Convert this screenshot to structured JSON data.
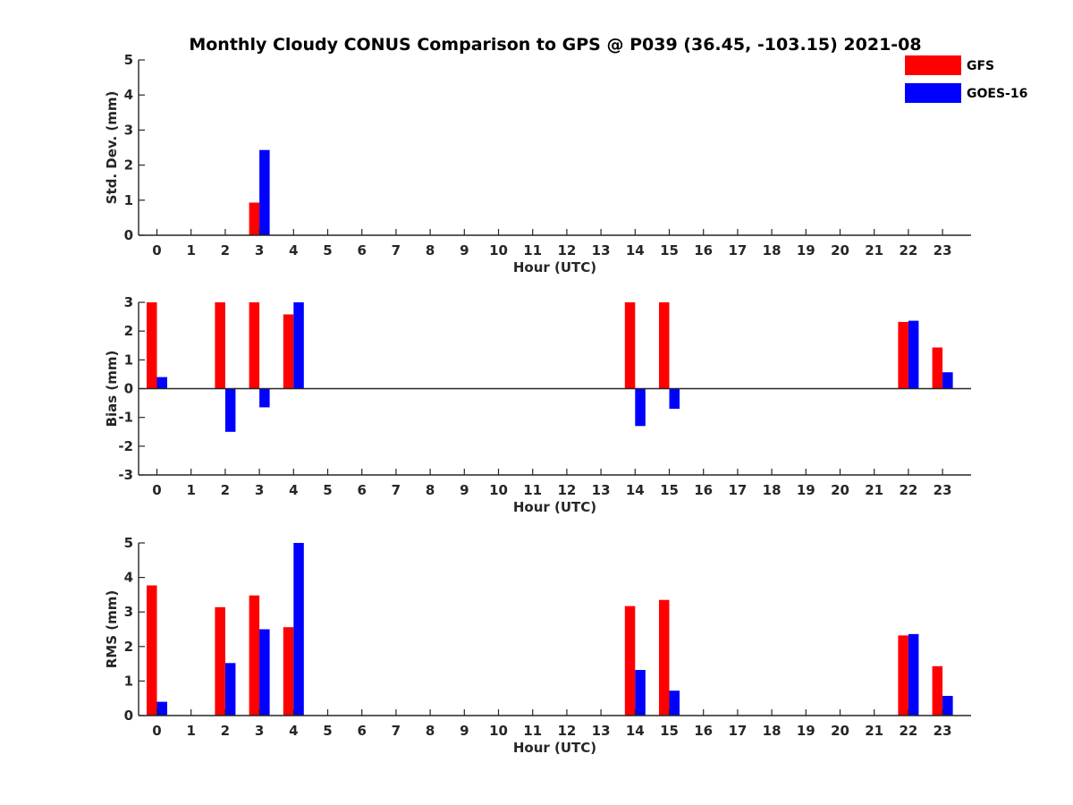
{
  "chart_data": {
    "type": "bar",
    "title": "Monthly Cloudy CONUS Comparison to GPS @ P039 (36.45, -103.15) 2021-08",
    "legend": {
      "placement": "top-right",
      "entries": [
        {
          "name": "GFS",
          "color": "#ff0000"
        },
        {
          "name": "GOES-16",
          "color": "#0000ff"
        }
      ]
    },
    "panels": [
      {
        "ylabel": "Std. Dev. (mm)",
        "xlabel": "Hour (UTC)",
        "ylim": [
          0,
          5
        ],
        "yticks": [
          0,
          1,
          2,
          3,
          4,
          5
        ],
        "categories": [
          "0",
          "1",
          "2",
          "3",
          "4",
          "5",
          "6",
          "7",
          "8",
          "9",
          "10",
          "11",
          "12",
          "13",
          "14",
          "15",
          "16",
          "17",
          "18",
          "19",
          "20",
          "21",
          "22",
          "23"
        ],
        "series": [
          {
            "name": "GFS",
            "values": [
              0,
              0,
              0,
              0.93,
              0,
              0,
              0,
              0,
              0,
              0,
              0,
              0,
              0,
              0,
              0,
              0,
              0,
              0,
              0,
              0,
              0,
              0,
              0,
              0
            ]
          },
          {
            "name": "GOES-16",
            "values": [
              0,
              0,
              0,
              2.43,
              0,
              0,
              0,
              0,
              0,
              0,
              0,
              0,
              0,
              0,
              0,
              0,
              0,
              0,
              0,
              0,
              0,
              0,
              0,
              0
            ]
          }
        ]
      },
      {
        "ylabel": "Bias (mm)",
        "xlabel": "Hour (UTC)",
        "ylim": [
          -3,
          3
        ],
        "yticks": [
          -3,
          -2,
          -1,
          0,
          1,
          2,
          3
        ],
        "zero_line": true,
        "categories": [
          "0",
          "1",
          "2",
          "3",
          "4",
          "5",
          "6",
          "7",
          "8",
          "9",
          "10",
          "11",
          "12",
          "13",
          "14",
          "15",
          "16",
          "17",
          "18",
          "19",
          "20",
          "21",
          "22",
          "23"
        ],
        "series": [
          {
            "name": "GFS",
            "values": [
              3,
              0,
              3,
              3,
              2.58,
              0,
              0,
              0,
              0,
              0,
              0,
              0,
              0,
              0,
              3,
              3,
              0,
              0,
              0,
              0,
              0,
              0,
              2.32,
              1.43
            ]
          },
          {
            "name": "GOES-16",
            "values": [
              0.4,
              0,
              -1.5,
              -0.65,
              3,
              0,
              0,
              0,
              0,
              0,
              0,
              0,
              0,
              0,
              -1.3,
              -0.7,
              0,
              0,
              0,
              0,
              0,
              0,
              2.36,
              0.57
            ]
          }
        ]
      },
      {
        "ylabel": "RMS (mm)",
        "xlabel": "Hour (UTC)",
        "ylim": [
          0,
          5
        ],
        "yticks": [
          0,
          1,
          2,
          3,
          4,
          5
        ],
        "categories": [
          "0",
          "1",
          "2",
          "3",
          "4",
          "5",
          "6",
          "7",
          "8",
          "9",
          "10",
          "11",
          "12",
          "13",
          "14",
          "15",
          "16",
          "17",
          "18",
          "19",
          "20",
          "21",
          "22",
          "23"
        ],
        "series": [
          {
            "name": "GFS",
            "values": [
              3.77,
              0,
              3.14,
              3.48,
              2.56,
              0,
              0,
              0,
              0,
              0,
              0,
              0,
              0,
              0,
              3.17,
              3.35,
              0,
              0,
              0,
              0,
              0,
              0,
              2.32,
              1.43
            ]
          },
          {
            "name": "GOES-16",
            "values": [
              0.4,
              0,
              1.52,
              2.5,
              5,
              0,
              0,
              0,
              0,
              0,
              0,
              0,
              0,
              0,
              1.32,
              0.72,
              0,
              0,
              0,
              0,
              0,
              0,
              2.36,
              0.57
            ]
          }
        ]
      }
    ]
  }
}
